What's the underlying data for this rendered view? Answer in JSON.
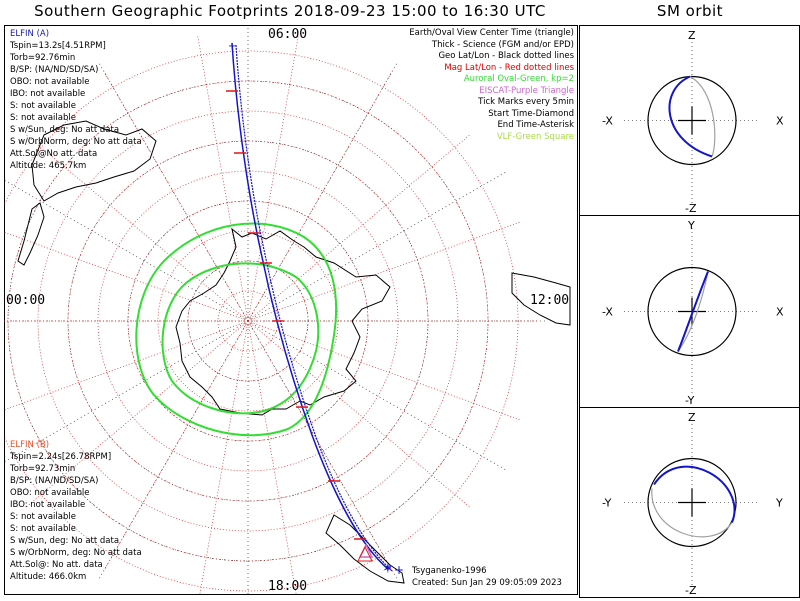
{
  "title": "Southern Geographic Footprints 2018-09-23 15:00 to 16:30 UTC",
  "sm_title": "SM orbit",
  "mlt_labels": {
    "top": "06:00",
    "left": "00:00",
    "right": "12:00",
    "bottom": "18:00"
  },
  "elfin_a": {
    "lines": [
      "ELFIN (A)",
      "Tspin=13.2s[4.51RPM]",
      "Torb=92.76min",
      "B/SP: (NA/ND/SD/SA)",
      "OBO: not available",
      "IBO: not available",
      "S: not available",
      "S: not available",
      "S w/Sun, deg: No att data",
      "S w/OrbNorm, deg: No att data",
      "Att.Sol@No att. data",
      "Altitude: 465.7km"
    ],
    "color": "#1a1aa6"
  },
  "elfin_b": {
    "lines": [
      "ELFIN (B)",
      "Tspin=2.24s[26.78RPM]",
      "Torb=92.73min",
      "B/SP: (NA/ND/SD/SA)",
      "OBO: not available",
      "IBO: not available",
      "S: not available",
      "S: not available",
      "S w/Sun, deg: No att data",
      "S w/OrbNorm, deg: No att data",
      "Att.Sol@: No att. data",
      "Altitude: 466.0km"
    ],
    "color": "#e8502a"
  },
  "legend": [
    {
      "text": "Earth/Oval View Center Time (triangle)",
      "color": "#000000"
    },
    {
      "text": "Thick - Science (FGM and/or EPD)",
      "color": "#000000"
    },
    {
      "text": "Geo Lat/Lon - Black dotted lines",
      "color": "#000000"
    },
    {
      "text": "Mag Lat/Lon - Red dotted lines",
      "color": "#e00000"
    },
    {
      "text": "Auroral Oval-Green, kp=2",
      "color": "#33dd33"
    },
    {
      "text": "EISCAT-Purple Triangle",
      "color": "#cc66cc"
    },
    {
      "text": "Tick Marks every 5min",
      "color": "#000000"
    },
    {
      "text": "Start Time-Diamond",
      "color": "#000000"
    },
    {
      "text": "End Time-Asterisk",
      "color": "#000000"
    },
    {
      "text": "VLF-Green Square",
      "color": "#aadd44"
    }
  ],
  "credit": [
    "Tsyganenko-1996",
    "Created: Sun Jan 29 09:05:09 2023"
  ],
  "sm_panels": [
    {
      "top": "Z",
      "bottom": "-Z",
      "left": "-X",
      "right": "X"
    },
    {
      "top": "Y",
      "bottom": "-Y",
      "left": "-X",
      "right": "X"
    },
    {
      "top": "Z",
      "bottom": "-Z",
      "left": "-Y",
      "right": "Y"
    }
  ],
  "colors": {
    "track": "#1414c8",
    "tick": "#e01414",
    "oval": "#33dd33",
    "mag_grid": "#e02020",
    "geo_grid": "#000000",
    "orbit_gray": "#a0a0a0"
  },
  "chart_data": {
    "type": "map",
    "projection": "south-polar",
    "grid": true,
    "legend_position": "top-right",
    "mlt_axis_labels": [
      "06:00",
      "00:00",
      "12:00",
      "18:00"
    ],
    "track_endpoints_mlt": {
      "start": "06:00",
      "end": "18:00"
    }
  }
}
